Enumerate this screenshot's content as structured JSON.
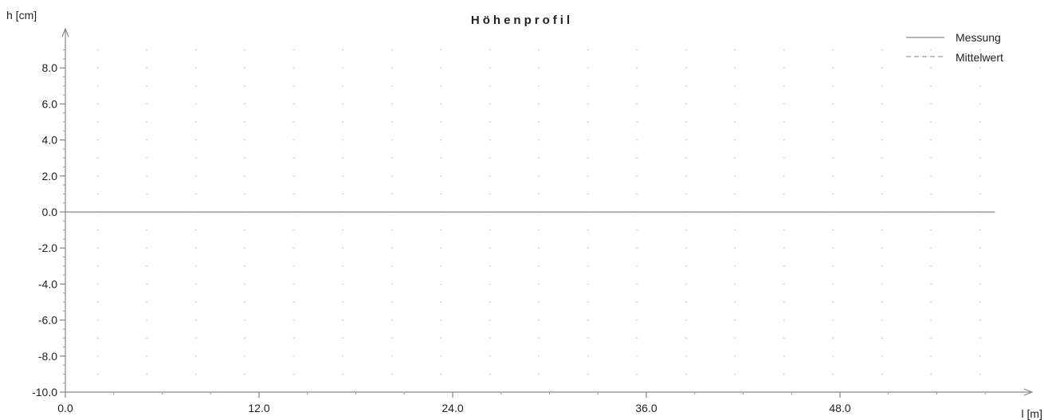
{
  "chart_data": {
    "type": "line",
    "title": "Höhenprofil",
    "xlabel": "l [m]",
    "ylabel": "h [cm]",
    "xlim": [
      0,
      57.6
    ],
    "ylim": [
      -10,
      10
    ],
    "x_ticks": [
      0,
      12,
      24,
      36,
      48
    ],
    "x_tick_labels": [
      "0.0",
      "12.0",
      "24.0",
      "36.0",
      "48.0"
    ],
    "y_ticks": [
      8,
      6,
      4,
      2,
      0,
      -2,
      -4,
      -6,
      -8,
      -10
    ],
    "y_tick_labels": [
      "8.0",
      "6.0",
      "4.0",
      "2.0",
      "0.0",
      "-2.0",
      "-4.0",
      "-6.0",
      "-8.0",
      "-10.0"
    ],
    "grid": true,
    "legend_position": "top-right",
    "series": [
      {
        "name": "Messung",
        "color": "#8a8a8a",
        "style": "solid",
        "x": [
          0,
          57.6
        ],
        "y": [
          0,
          0
        ]
      },
      {
        "name": "Mittelwert",
        "color": "#9a9a9a",
        "style": "dashed",
        "x": [
          0,
          57.6
        ],
        "y": [
          0,
          0
        ]
      }
    ]
  }
}
